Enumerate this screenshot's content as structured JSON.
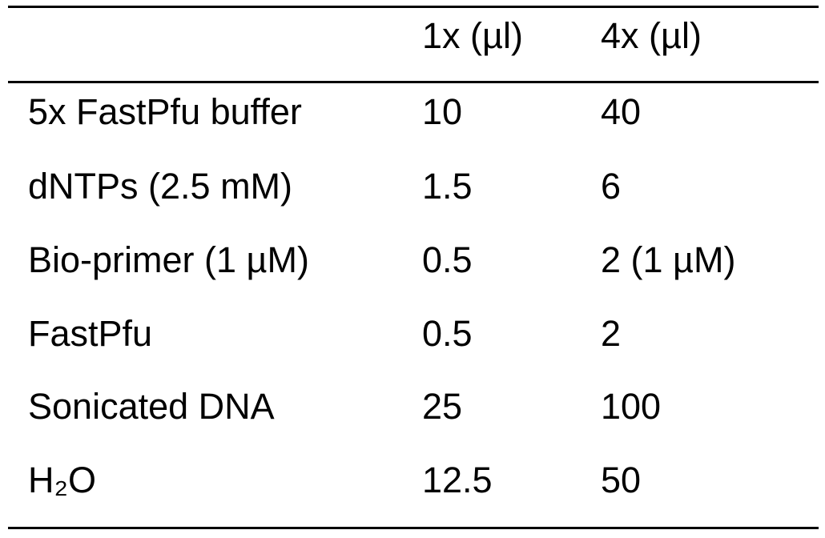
{
  "table": {
    "header": [
      "1x (µl)",
      "4x (µl)"
    ],
    "rows": [
      [
        "5x FastPfu buffer",
        "10",
        "40"
      ],
      [
        "dNTPs (2.5 mM)",
        "1.5",
        "6"
      ],
      [
        "Bio-primer (1 µM)",
        "0.5",
        "2 (1 µM)"
      ],
      [
        "FastPfu",
        "0.5",
        "2"
      ],
      [
        "Sonicated DNA",
        "25",
        "100"
      ],
      [
        "H₂O",
        "12.5",
        "50"
      ]
    ]
  }
}
